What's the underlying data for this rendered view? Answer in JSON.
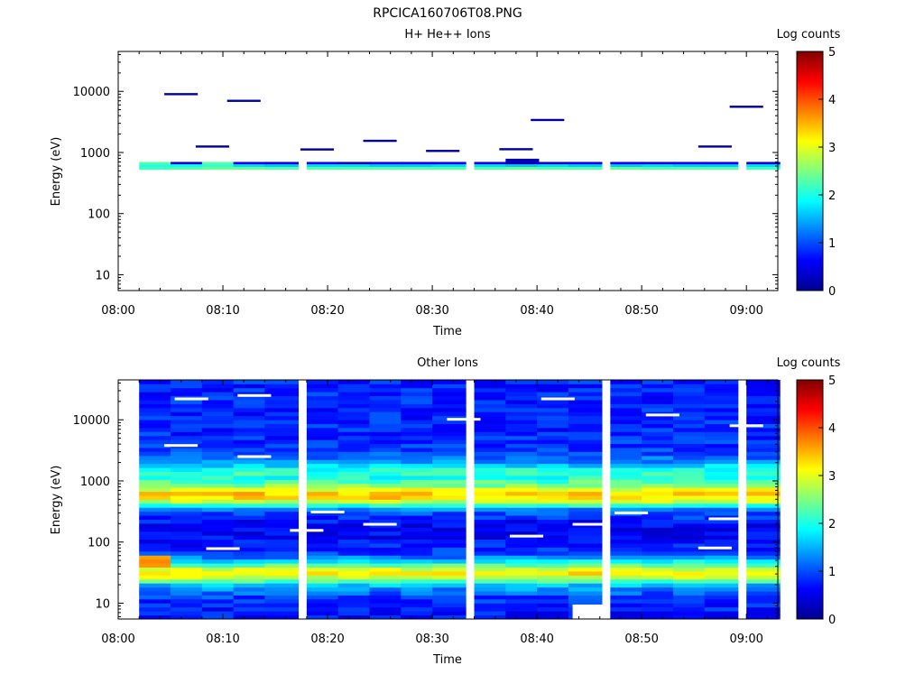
{
  "page_title": "RPCICA160706T08.PNG",
  "chart_data": [
    {
      "type": "heatmap",
      "title": "H+ He++ Ions",
      "xlabel": "Time",
      "ylabel": "Energy (eV)",
      "y_scale": "log",
      "ylim": [
        5.5,
        45000
      ],
      "xlim": [
        "08:00",
        "09:03"
      ],
      "x_ticks": [
        "08:00",
        "08:10",
        "08:20",
        "08:30",
        "08:40",
        "08:50",
        "09:00"
      ],
      "y_ticks": [
        "10",
        "100",
        "1000",
        "10000"
      ],
      "colorbar": {
        "label": "Log counts",
        "min": 0,
        "max": 5,
        "ticks": [
          "0",
          "1",
          "2",
          "3",
          "4",
          "5"
        ]
      },
      "time_bins_start": [
        "08:02",
        "08:05",
        "08:08",
        "08:11",
        "08:14",
        "08:18",
        "08:21",
        "08:24",
        "08:27",
        "08:30",
        "08:34",
        "08:37",
        "08:40",
        "08:43",
        "08:47",
        "08:50",
        "08:53",
        "08:56",
        "09:00"
      ],
      "bin_minutes": 3.2,
      "energy_bins_eV": [
        520,
        580,
        640,
        700
      ],
      "log_counts": [
        [
          2.2,
          2.3,
          2.4,
          2.4,
          2.3,
          2.3,
          2.3,
          2.3,
          2.3,
          2.3,
          2.3,
          2.4,
          2.3,
          2.3,
          2.4,
          2.3,
          2.3,
          2.3,
          2.2
        ],
        [
          2.0,
          1.9,
          2.1,
          1.7,
          1.6,
          1.7,
          1.7,
          1.6,
          1.6,
          1.7,
          1.7,
          1.6,
          1.7,
          1.6,
          1.6,
          1.7,
          1.6,
          1.6,
          1.7
        ],
        [
          2.3,
          0.4,
          2.3,
          0.6,
          0.5,
          0.6,
          0.3,
          0.6,
          0.6,
          0.6,
          0.5,
          0.2,
          0.4,
          0.6,
          0.6,
          0.5,
          0.6,
          0.6,
          0.4
        ],
        [
          null,
          null,
          null,
          null,
          null,
          null,
          null,
          null,
          null,
          null,
          null,
          0.2,
          null,
          null,
          null,
          null,
          null,
          null,
          null
        ]
      ],
      "single_counts": [
        {
          "time": "08:06",
          "energy_eV": 9000,
          "log_count": 0.1
        },
        {
          "time": "08:09",
          "energy_eV": 1250,
          "log_count": 0.1
        },
        {
          "time": "08:12",
          "energy_eV": 7000,
          "log_count": 0.1
        },
        {
          "time": "08:19",
          "energy_eV": 1120,
          "log_count": 0.1
        },
        {
          "time": "08:25",
          "energy_eV": 1550,
          "log_count": 0.1
        },
        {
          "time": "08:31",
          "energy_eV": 1060,
          "log_count": 0.1
        },
        {
          "time": "08:38",
          "energy_eV": 1130,
          "log_count": 0.1
        },
        {
          "time": "08:41",
          "energy_eV": 3400,
          "log_count": 0.1
        },
        {
          "time": "08:57",
          "energy_eV": 1250,
          "log_count": 0.1
        },
        {
          "time": "09:00",
          "energy_eV": 5600,
          "log_count": 0.1
        }
      ]
    },
    {
      "type": "heatmap",
      "title": "Other Ions",
      "xlabel": "Time",
      "ylabel": "Energy (eV)",
      "y_scale": "log",
      "ylim": [
        5.5,
        45000
      ],
      "xlim": [
        "08:00",
        "09:03"
      ],
      "x_ticks": [
        "08:00",
        "08:10",
        "08:20",
        "08:30",
        "08:40",
        "08:50",
        "09:00"
      ],
      "y_ticks": [
        "10",
        "100",
        "1000",
        "10000"
      ],
      "colorbar": {
        "label": "Log counts",
        "min": 0,
        "max": 5,
        "ticks": [
          "0",
          "1",
          "2",
          "3",
          "4",
          "5"
        ]
      },
      "time_bins_start": [
        "08:02",
        "08:05",
        "08:08",
        "08:11",
        "08:14",
        "08:18",
        "08:21",
        "08:24",
        "08:27",
        "08:30",
        "08:34",
        "08:37",
        "08:40",
        "08:43",
        "08:47",
        "08:50",
        "08:53",
        "08:56",
        "09:00"
      ],
      "bin_minutes": 3.2,
      "energy_range_eV": [
        5.5,
        45000
      ],
      "energy_band_count": 60,
      "log_count_profile_by_energy": {
        "energy_eV": [
          7,
          10,
          14,
          20,
          27,
          32,
          38,
          46,
          55,
          65,
          80,
          120,
          200,
          330,
          420,
          500,
          580,
          680,
          800,
          950,
          1150,
          1350,
          1600,
          2200,
          3500,
          6000,
          12000,
          25000
        ],
        "log_counts": [
          0.7,
          0.8,
          1.0,
          1.6,
          2.9,
          3.3,
          2.7,
          2.0,
          1.3,
          0.9,
          0.8,
          0.6,
          0.6,
          1.1,
          2.4,
          3.1,
          3.5,
          3.2,
          2.6,
          2.3,
          2.0,
          2.2,
          1.9,
          1.2,
          0.9,
          0.8,
          0.8,
          0.8
        ]
      },
      "early_bins_low_energy_enhancement": {
        "time_bins": [
          "08:02"
        ],
        "energy_eV": [
          40,
          60
        ],
        "log_count": 3.6
      },
      "empty_bins": [
        {
          "time": "08:45",
          "energy_eV": 7.2
        },
        {
          "time": "08:06",
          "energy_eV": 3800
        },
        {
          "time": "08:07",
          "energy_eV": 22000
        },
        {
          "time": "08:10",
          "energy_eV": 78
        },
        {
          "time": "08:13",
          "energy_eV": 2500
        },
        {
          "time": "08:13",
          "energy_eV": 25000
        },
        {
          "time": "08:18",
          "energy_eV": 155
        },
        {
          "time": "08:20",
          "energy_eV": 310
        },
        {
          "time": "08:25",
          "energy_eV": 195
        },
        {
          "time": "08:33",
          "energy_eV": 10200
        },
        {
          "time": "08:39",
          "energy_eV": 125
        },
        {
          "time": "08:42",
          "energy_eV": 22000
        },
        {
          "time": "08:45",
          "energy_eV": 195
        },
        {
          "time": "08:49",
          "energy_eV": 300
        },
        {
          "time": "08:52",
          "energy_eV": 12000
        },
        {
          "time": "08:57",
          "energy_eV": 80
        },
        {
          "time": "08:58",
          "energy_eV": 240
        },
        {
          "time": "09:00",
          "energy_eV": 8000
        }
      ]
    }
  ]
}
